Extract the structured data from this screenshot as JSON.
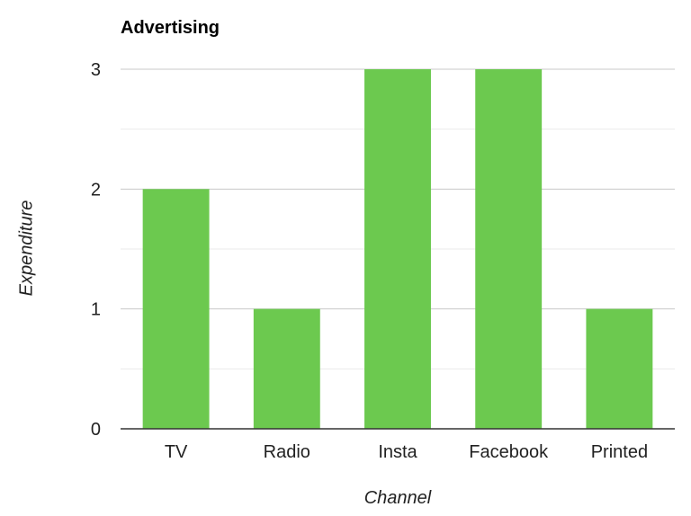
{
  "chart_data": {
    "type": "bar",
    "title": "Advertising",
    "xlabel": "Channel",
    "ylabel": "Expenditure",
    "categories": [
      "TV",
      "Radio",
      "Insta",
      "Facebook",
      "Printed"
    ],
    "values": [
      2,
      1,
      3,
      3,
      1
    ],
    "ylim": [
      0,
      3
    ],
    "yticks": [
      "0",
      "1",
      "2",
      "3"
    ],
    "grid": true,
    "colors": {
      "bar": "#6cc94f",
      "major_grid": "#c8c8c8",
      "minor_grid": "#ebebeb",
      "baseline": "#333333"
    }
  }
}
